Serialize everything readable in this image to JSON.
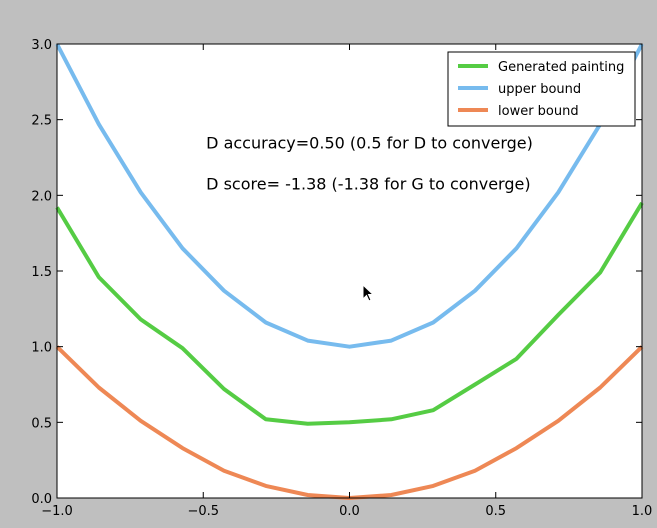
{
  "chart_data": {
    "type": "line",
    "title": "",
    "xlabel": "",
    "ylabel": "",
    "xlim": [
      -1.0,
      1.0
    ],
    "ylim": [
      0.0,
      3.0
    ],
    "xticks": [
      -1.0,
      -0.5,
      0.0,
      0.5,
      1.0
    ],
    "xtick_labels": [
      "−1.0",
      "−0.5",
      "0.0",
      "0.5",
      "1.0"
    ],
    "yticks": [
      0.0,
      0.5,
      1.0,
      1.5,
      2.0,
      2.5,
      3.0
    ],
    "ytick_labels": [
      "0.0",
      "0.5",
      "1.0",
      "1.5",
      "2.0",
      "2.5",
      "3.0"
    ],
    "grid": false,
    "legend_position": "top-right",
    "series": [
      {
        "name": "Generated painting",
        "color": "#55cc44",
        "x": [
          -1.0,
          -0.857,
          -0.714,
          -0.571,
          -0.429,
          -0.286,
          -0.143,
          0.0,
          0.143,
          0.286,
          0.429,
          0.571,
          0.714,
          0.857,
          1.0
        ],
        "y": [
          1.92,
          1.46,
          1.18,
          0.99,
          0.72,
          0.52,
          0.49,
          0.5,
          0.52,
          0.58,
          0.75,
          0.92,
          1.21,
          1.49,
          1.95
        ]
      },
      {
        "name": "upper bound",
        "color": "#77bbee",
        "x": [
          -1.0,
          -0.857,
          -0.714,
          -0.571,
          -0.429,
          -0.286,
          -0.143,
          0.0,
          0.143,
          0.286,
          0.429,
          0.571,
          0.714,
          0.857,
          1.0
        ],
        "y": [
          3.0,
          2.47,
          2.02,
          1.65,
          1.37,
          1.16,
          1.04,
          1.0,
          1.04,
          1.16,
          1.37,
          1.65,
          2.02,
          2.47,
          3.0
        ]
      },
      {
        "name": "lower bound",
        "color": "#ee8855",
        "x": [
          -1.0,
          -0.857,
          -0.714,
          -0.571,
          -0.429,
          -0.286,
          -0.143,
          0.0,
          0.143,
          0.286,
          0.429,
          0.571,
          0.714,
          0.857,
          1.0
        ],
        "y": [
          1.0,
          0.73,
          0.51,
          0.33,
          0.18,
          0.08,
          0.02,
          0.0,
          0.02,
          0.08,
          0.18,
          0.33,
          0.51,
          0.73,
          1.0
        ]
      }
    ],
    "annotations": [
      {
        "text": "D accuracy=0.50 (0.5 for D to converge)",
        "x": -0.49,
        "y": 2.31
      },
      {
        "text": "D score= -1.38 (-1.38 for G to converge)",
        "x": -0.49,
        "y": 2.04
      }
    ]
  }
}
